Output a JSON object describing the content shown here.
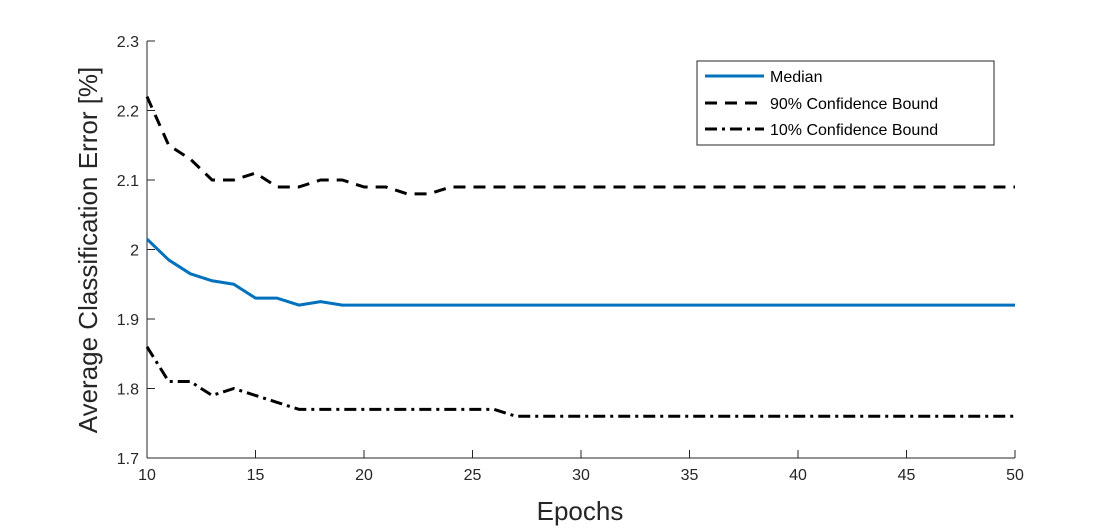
{
  "chart_data": {
    "type": "line",
    "xlabel": "Epochs",
    "ylabel": "Average Classification Error [%]",
    "xlim": [
      10,
      50
    ],
    "ylim": [
      1.7,
      2.3
    ],
    "xticks": [
      10,
      15,
      20,
      25,
      30,
      35,
      40,
      45,
      50
    ],
    "yticks": [
      1.7,
      1.8,
      1.9,
      2.0,
      2.1,
      2.2,
      2.3
    ],
    "ytick_labels": [
      "1.7",
      "1.8",
      "1.9",
      "2",
      "2.1",
      "2.2",
      "2.3"
    ],
    "grid": false,
    "legend_position": "top-right",
    "series": [
      {
        "name": "Median",
        "color": "#0072BD",
        "style": "solid",
        "x": [
          10,
          11,
          12,
          13,
          14,
          15,
          16,
          17,
          18,
          19,
          20,
          21,
          22,
          23,
          24,
          25,
          26,
          27,
          28,
          29,
          30,
          31,
          32,
          33,
          34,
          35,
          36,
          37,
          38,
          39,
          40,
          41,
          42,
          43,
          44,
          45,
          46,
          47,
          48,
          49,
          50
        ],
        "values": [
          2.015,
          1.985,
          1.965,
          1.955,
          1.95,
          1.93,
          1.93,
          1.92,
          1.925,
          1.92,
          1.92,
          1.92,
          1.92,
          1.92,
          1.92,
          1.92,
          1.92,
          1.92,
          1.92,
          1.92,
          1.92,
          1.92,
          1.92,
          1.92,
          1.92,
          1.92,
          1.92,
          1.92,
          1.92,
          1.92,
          1.92,
          1.92,
          1.92,
          1.92,
          1.92,
          1.92,
          1.92,
          1.92,
          1.92,
          1.92,
          1.92
        ]
      },
      {
        "name": "90% Confidence Bound",
        "color": "#000000",
        "style": "dashed",
        "x": [
          10,
          11,
          12,
          13,
          14,
          15,
          16,
          17,
          18,
          19,
          20,
          21,
          22,
          23,
          24,
          25,
          26,
          27,
          28,
          29,
          30,
          31,
          32,
          33,
          34,
          35,
          36,
          37,
          38,
          39,
          40,
          41,
          42,
          43,
          44,
          45,
          46,
          47,
          48,
          49,
          50
        ],
        "values": [
          2.22,
          2.15,
          2.13,
          2.1,
          2.1,
          2.11,
          2.09,
          2.09,
          2.1,
          2.1,
          2.09,
          2.09,
          2.08,
          2.08,
          2.09,
          2.09,
          2.09,
          2.09,
          2.09,
          2.09,
          2.09,
          2.09,
          2.09,
          2.09,
          2.09,
          2.09,
          2.09,
          2.09,
          2.09,
          2.09,
          2.09,
          2.09,
          2.09,
          2.09,
          2.09,
          2.09,
          2.09,
          2.09,
          2.09,
          2.09,
          2.09
        ]
      },
      {
        "name": "10% Confidence Bound",
        "color": "#000000",
        "style": "dashdot",
        "x": [
          10,
          11,
          12,
          13,
          14,
          15,
          16,
          17,
          18,
          19,
          20,
          21,
          22,
          23,
          24,
          25,
          26,
          27,
          28,
          29,
          30,
          31,
          32,
          33,
          34,
          35,
          36,
          37,
          38,
          39,
          40,
          41,
          42,
          43,
          44,
          45,
          46,
          47,
          48,
          49,
          50
        ],
        "values": [
          1.86,
          1.81,
          1.81,
          1.79,
          1.8,
          1.79,
          1.78,
          1.77,
          1.77,
          1.77,
          1.77,
          1.77,
          1.77,
          1.77,
          1.77,
          1.77,
          1.77,
          1.76,
          1.76,
          1.76,
          1.76,
          1.76,
          1.76,
          1.76,
          1.76,
          1.76,
          1.76,
          1.76,
          1.76,
          1.76,
          1.76,
          1.76,
          1.76,
          1.76,
          1.76,
          1.76,
          1.76,
          1.76,
          1.76,
          1.76,
          1.76
        ]
      }
    ]
  }
}
